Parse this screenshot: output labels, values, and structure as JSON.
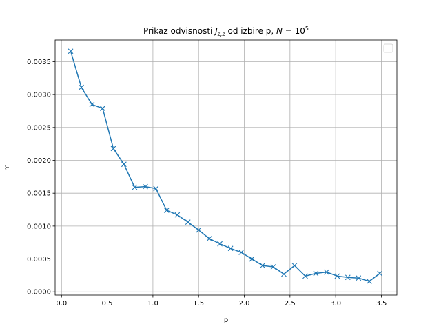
{
  "chart_data": {
    "type": "line",
    "title_text": "Prikaz odvisnosti ",
    "title_symbol": "J",
    "title_subscript": "z,z",
    "title_middle": " od izbire p, ",
    "title_n_symbol": "N",
    "title_equals": " = 10",
    "title_exponent": "5",
    "xlabel": "p",
    "ylabel": "m",
    "xlim": [
      -0.07,
      3.67
    ],
    "ylim": [
      -5e-05,
      0.00383
    ],
    "xticks": [
      0.0,
      0.5,
      1.0,
      1.5,
      2.0,
      2.5,
      3.0,
      3.5
    ],
    "xtick_labels": [
      "0.0",
      "0.5",
      "1.0",
      "1.5",
      "2.0",
      "2.5",
      "3.0",
      "3.5"
    ],
    "yticks": [
      0.0,
      0.0005,
      0.001,
      0.0015,
      0.002,
      0.0025,
      0.003,
      0.0035
    ],
    "ytick_labels": [
      "0.0000",
      "0.0005",
      "0.0010",
      "0.0015",
      "0.0020",
      "0.0025",
      "0.0030",
      "0.0035"
    ],
    "grid": true,
    "legend_placement": "top-right",
    "marker": "x",
    "color": "#1f77b4",
    "x": [
      0.1,
      0.217,
      0.333,
      0.45,
      0.567,
      0.683,
      0.8,
      0.917,
      1.033,
      1.15,
      1.267,
      1.383,
      1.5,
      1.617,
      1.733,
      1.85,
      1.967,
      2.083,
      2.2,
      2.317,
      2.433,
      2.55,
      2.667,
      2.783,
      2.9,
      3.017,
      3.133,
      3.25,
      3.367,
      3.483
    ],
    "y": [
      0.00366,
      0.00311,
      0.00285,
      0.00279,
      0.00218,
      0.00194,
      0.00159,
      0.0016,
      0.00157,
      0.00124,
      0.00117,
      0.00106,
      0.00094,
      0.00081,
      0.00073,
      0.00066,
      0.0006,
      0.0005,
      0.0004,
      0.00038,
      0.00027,
      0.0004,
      0.00024,
      0.00028,
      0.0003,
      0.00024,
      0.00022,
      0.00021,
      0.00016,
      0.00028
    ]
  }
}
